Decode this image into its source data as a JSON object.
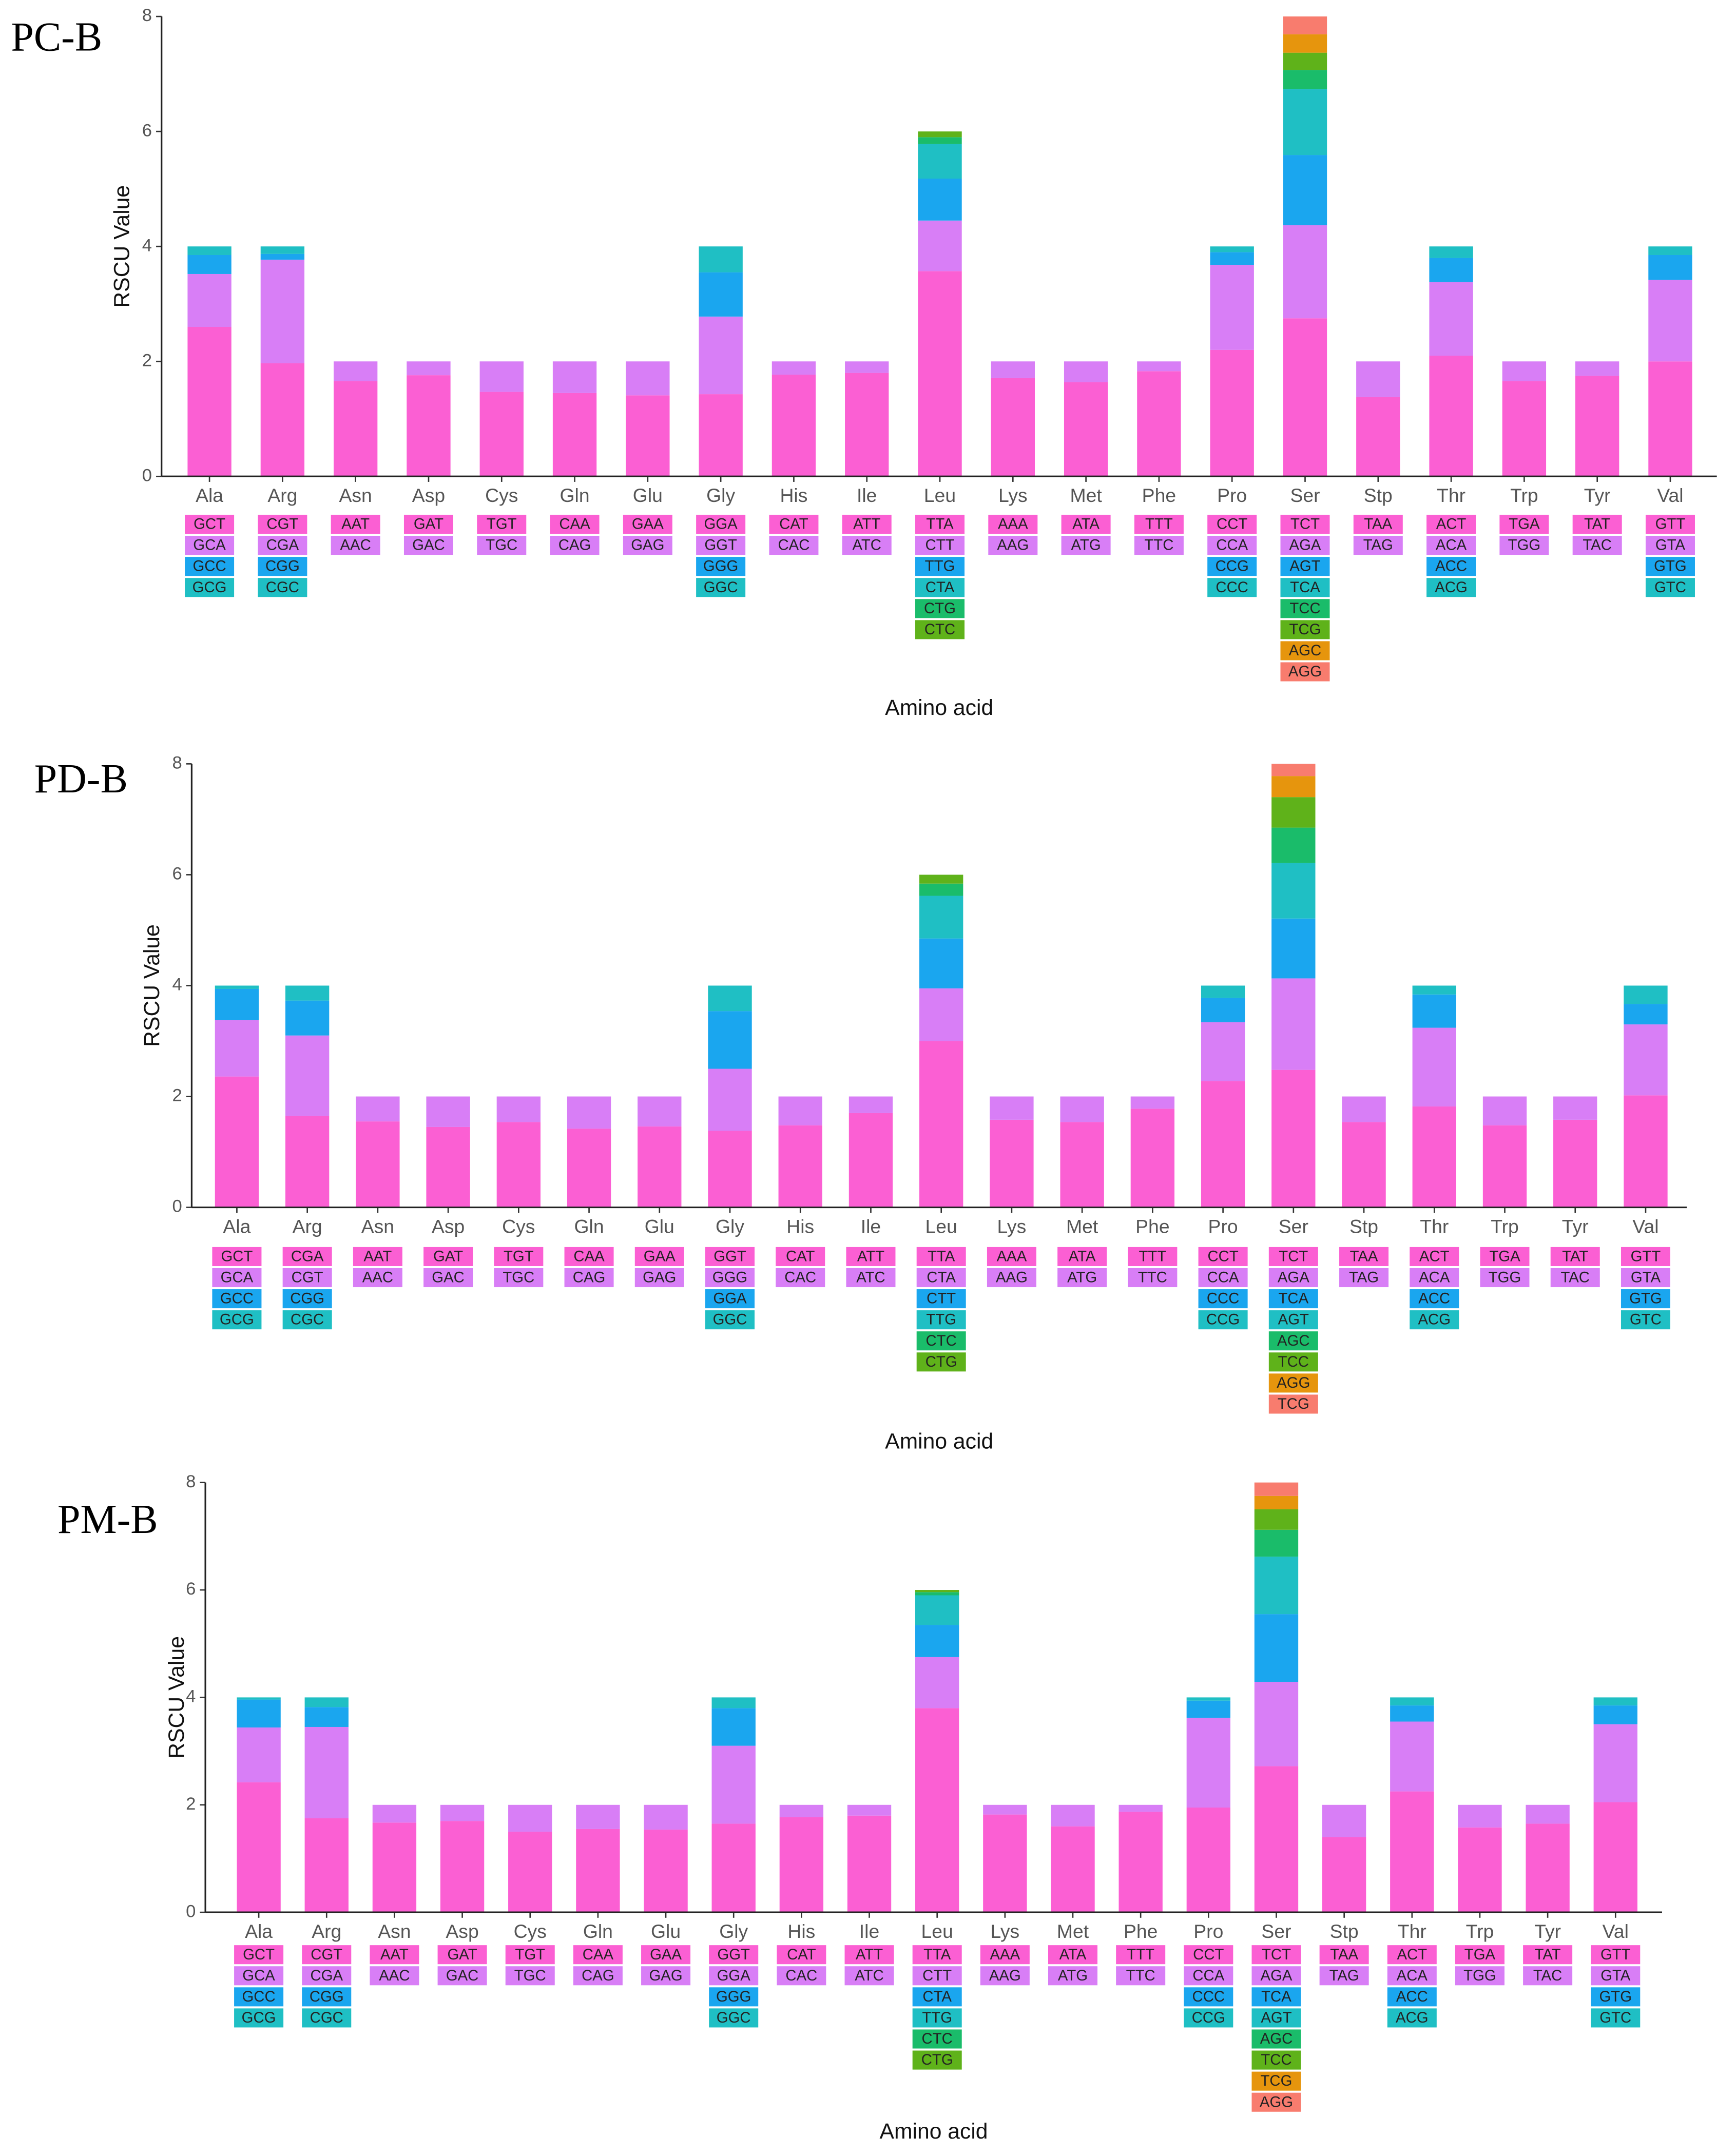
{
  "chart_data": [
    {
      "type": "stacked_bar",
      "title": "PC-B",
      "xlabel": "Amino acid",
      "ylabel": "RSCU Value",
      "ylim": [
        0,
        8
      ],
      "yticks": [
        0,
        2,
        4,
        6,
        8
      ],
      "colors": [
        "#fb5fd3",
        "#d87ef6",
        "#1aa6ef",
        "#1fbfc4",
        "#1abc6a",
        "#5fb21a",
        "#e6950d",
        "#f87c6e"
      ],
      "categories": [
        "Ala",
        "Arg",
        "Asn",
        "Asp",
        "Cys",
        "Gln",
        "Glu",
        "Gly",
        "His",
        "Ile",
        "Leu",
        "Lys",
        "Met",
        "Phe",
        "Pro",
        "Ser",
        "Stp",
        "Thr",
        "Trp",
        "Tyr",
        "Val"
      ],
      "stacks": [
        [
          [
            "GCT",
            2.6
          ],
          [
            "GCA",
            0.92
          ],
          [
            "GCC",
            0.33
          ],
          [
            "GCG",
            0.15
          ]
        ],
        [
          [
            "CGT",
            1.97
          ],
          [
            "CGA",
            1.8
          ],
          [
            "CGG",
            0.1
          ],
          [
            "CGC",
            0.13
          ]
        ],
        [
          [
            "AAT",
            1.66
          ],
          [
            "AAC",
            0.34
          ]
        ],
        [
          [
            "GAT",
            1.76
          ],
          [
            "GAC",
            0.24
          ]
        ],
        [
          [
            "TGT",
            1.47
          ],
          [
            "TGC",
            0.53
          ]
        ],
        [
          [
            "CAA",
            1.45
          ],
          [
            "CAG",
            0.55
          ]
        ],
        [
          [
            "GAA",
            1.41
          ],
          [
            "GAG",
            0.59
          ]
        ],
        [
          [
            "GGA",
            1.43
          ],
          [
            "GGT",
            1.35
          ],
          [
            "GGG",
            0.77
          ],
          [
            "GGC",
            0.45
          ]
        ],
        [
          [
            "CAT",
            1.77
          ],
          [
            "CAC",
            0.23
          ]
        ],
        [
          [
            "ATT",
            1.8
          ],
          [
            "ATC",
            0.2
          ]
        ],
        [
          [
            "TTA",
            3.57
          ],
          [
            "CTT",
            0.88
          ],
          [
            "TTG",
            0.73
          ],
          [
            "CTA",
            0.6
          ],
          [
            "CTG",
            0.12
          ],
          [
            "CTC",
            0.1
          ]
        ],
        [
          [
            "AAA",
            1.71
          ],
          [
            "AAG",
            0.29
          ]
        ],
        [
          [
            "ATA",
            1.64
          ],
          [
            "ATG",
            0.36
          ]
        ],
        [
          [
            "TTT",
            1.83
          ],
          [
            "TTC",
            0.17
          ]
        ],
        [
          [
            "CCT",
            2.2
          ],
          [
            "CCA",
            1.48
          ],
          [
            "CCG",
            0.22
          ],
          [
            "CCC",
            0.1
          ]
        ],
        [
          [
            "TCT",
            2.75
          ],
          [
            "AGA",
            1.62
          ],
          [
            "AGT",
            1.22
          ],
          [
            "TCA",
            1.15
          ],
          [
            "TCC",
            0.33
          ],
          [
            "TCG",
            0.3
          ],
          [
            "AGC",
            0.32
          ],
          [
            "AGG",
            0.31
          ]
        ],
        [
          [
            "TAA",
            1.38
          ],
          [
            "TAG",
            0.62
          ]
        ],
        [
          [
            "ACT",
            2.1
          ],
          [
            "ACA",
            1.28
          ],
          [
            "ACC",
            0.42
          ],
          [
            "ACG",
            0.2
          ]
        ],
        [
          [
            "TGA",
            1.66
          ],
          [
            "TGG",
            0.34
          ]
        ],
        [
          [
            "TAT",
            1.75
          ],
          [
            "TAC",
            0.25
          ]
        ],
        [
          [
            "GTT",
            2.0
          ],
          [
            "GTA",
            1.42
          ],
          [
            "GTG",
            0.43
          ],
          [
            "GTC",
            0.15
          ]
        ]
      ]
    },
    {
      "type": "stacked_bar",
      "title": "PD-B",
      "xlabel": "Amino acid",
      "ylabel": "RSCU Value",
      "ylim": [
        0,
        8
      ],
      "yticks": [
        0,
        2,
        4,
        6,
        8
      ],
      "colors": [
        "#fb5fd3",
        "#d87ef6",
        "#1aa6ef",
        "#1fbfc4",
        "#1abc6a",
        "#5fb21a",
        "#e6950d",
        "#f87c6e"
      ],
      "categories": [
        "Ala",
        "Arg",
        "Asn",
        "Asp",
        "Cys",
        "Gln",
        "Glu",
        "Gly",
        "His",
        "Ile",
        "Leu",
        "Lys",
        "Met",
        "Phe",
        "Pro",
        "Ser",
        "Stp",
        "Thr",
        "Trp",
        "Tyr",
        "Val"
      ],
      "stacks": [
        [
          [
            "GCT",
            2.36
          ],
          [
            "GCA",
            1.02
          ],
          [
            "GCC",
            0.56
          ],
          [
            "GCG",
            0.06
          ]
        ],
        [
          [
            "CGA",
            1.65
          ],
          [
            "CGT",
            1.45
          ],
          [
            "CGG",
            0.63
          ],
          [
            "CGC",
            0.27
          ]
        ],
        [
          [
            "AAT",
            1.55
          ],
          [
            "AAC",
            0.45
          ]
        ],
        [
          [
            "GAT",
            1.45
          ],
          [
            "GAC",
            0.55
          ]
        ],
        [
          [
            "TGT",
            1.54
          ],
          [
            "TGC",
            0.46
          ]
        ],
        [
          [
            "CAA",
            1.42
          ],
          [
            "CAG",
            0.58
          ]
        ],
        [
          [
            "GAA",
            1.46
          ],
          [
            "GAG",
            0.54
          ]
        ],
        [
          [
            "GGT",
            1.38
          ],
          [
            "GGG",
            1.12
          ],
          [
            "GGA",
            1.04
          ],
          [
            "GGC",
            0.46
          ]
        ],
        [
          [
            "CAT",
            1.48
          ],
          [
            "CAC",
            0.52
          ]
        ],
        [
          [
            "ATT",
            1.7
          ],
          [
            "ATC",
            0.3
          ]
        ],
        [
          [
            "TTA",
            3.0
          ],
          [
            "CTA",
            0.95
          ],
          [
            "CTT",
            0.9
          ],
          [
            "TTG",
            0.77
          ],
          [
            "CTC",
            0.22
          ],
          [
            "CTG",
            0.16
          ]
        ],
        [
          [
            "AAA",
            1.58
          ],
          [
            "AAG",
            0.42
          ]
        ],
        [
          [
            "ATA",
            1.54
          ],
          [
            "ATG",
            0.46
          ]
        ],
        [
          [
            "TTT",
            1.78
          ],
          [
            "TTC",
            0.22
          ]
        ],
        [
          [
            "CCT",
            2.28
          ],
          [
            "CCA",
            1.06
          ],
          [
            "CCC",
            0.44
          ],
          [
            "CCG",
            0.22
          ]
        ],
        [
          [
            "TCT",
            2.48
          ],
          [
            "AGA",
            1.65
          ],
          [
            "TCA",
            1.08
          ],
          [
            "AGT",
            1.0
          ],
          [
            "AGC",
            0.64
          ],
          [
            "TCC",
            0.55
          ],
          [
            "AGG",
            0.38
          ],
          [
            "TCG",
            0.22
          ]
        ],
        [
          [
            "TAA",
            1.54
          ],
          [
            "TAG",
            0.46
          ]
        ],
        [
          [
            "ACT",
            1.82
          ],
          [
            "ACA",
            1.42
          ],
          [
            "ACC",
            0.6
          ],
          [
            "ACG",
            0.16
          ]
        ],
        [
          [
            "TGA",
            1.48
          ],
          [
            "TGG",
            0.52
          ]
        ],
        [
          [
            "TAT",
            1.58
          ],
          [
            "TAC",
            0.42
          ]
        ],
        [
          [
            "GTT",
            2.02
          ],
          [
            "GTA",
            1.28
          ],
          [
            "GTG",
            0.37
          ],
          [
            "GTC",
            0.33
          ]
        ]
      ]
    },
    {
      "type": "stacked_bar",
      "title": "PM-B",
      "xlabel": "Amino acid",
      "ylabel": "RSCU Value",
      "ylim": [
        0,
        8
      ],
      "yticks": [
        0,
        2,
        4,
        6,
        8
      ],
      "colors": [
        "#fb5fd3",
        "#d87ef6",
        "#1aa6ef",
        "#1fbfc4",
        "#1abc6a",
        "#5fb21a",
        "#e6950d",
        "#f87c6e"
      ],
      "categories": [
        "Ala",
        "Arg",
        "Asn",
        "Asp",
        "Cys",
        "Gln",
        "Glu",
        "Gly",
        "His",
        "Ile",
        "Leu",
        "Lys",
        "Met",
        "Phe",
        "Pro",
        "Ser",
        "Stp",
        "Thr",
        "Trp",
        "Tyr",
        "Val"
      ],
      "stacks": [
        [
          [
            "GCT",
            2.42
          ],
          [
            "GCA",
            1.02
          ],
          [
            "GCC",
            0.52
          ],
          [
            "GCG",
            0.04
          ]
        ],
        [
          [
            "CGT",
            1.75
          ],
          [
            "CGA",
            1.7
          ],
          [
            "CGG",
            0.37
          ],
          [
            "CGC",
            0.18
          ]
        ],
        [
          [
            "AAT",
            1.67
          ],
          [
            "AAC",
            0.33
          ]
        ],
        [
          [
            "GAT",
            1.7
          ],
          [
            "GAC",
            0.3
          ]
        ],
        [
          [
            "TGT",
            1.5
          ],
          [
            "TGC",
            0.5
          ]
        ],
        [
          [
            "CAA",
            1.55
          ],
          [
            "CAG",
            0.45
          ]
        ],
        [
          [
            "GAA",
            1.54
          ],
          [
            "GAG",
            0.46
          ]
        ],
        [
          [
            "GGT",
            1.65
          ],
          [
            "GGA",
            1.45
          ],
          [
            "GGG",
            0.7
          ],
          [
            "GGC",
            0.2
          ]
        ],
        [
          [
            "CAT",
            1.77
          ],
          [
            "CAC",
            0.23
          ]
        ],
        [
          [
            "ATT",
            1.8
          ],
          [
            "ATC",
            0.2
          ]
        ],
        [
          [
            "TTA",
            3.8
          ],
          [
            "CTT",
            0.95
          ],
          [
            "CTA",
            0.6
          ],
          [
            "TTG",
            0.55
          ],
          [
            "CTC",
            0.06
          ],
          [
            "CTG",
            0.04
          ]
        ],
        [
          [
            "AAA",
            1.82
          ],
          [
            "AAG",
            0.18
          ]
        ],
        [
          [
            "ATA",
            1.6
          ],
          [
            "ATG",
            0.4
          ]
        ],
        [
          [
            "TTT",
            1.87
          ],
          [
            "TTC",
            0.13
          ]
        ],
        [
          [
            "CCT",
            1.95
          ],
          [
            "CCA",
            1.67
          ],
          [
            "CCC",
            0.32
          ],
          [
            "CCG",
            0.06
          ]
        ],
        [
          [
            "TCT",
            2.72
          ],
          [
            "AGA",
            1.57
          ],
          [
            "TCA",
            1.26
          ],
          [
            "AGT",
            1.07
          ],
          [
            "AGC",
            0.5
          ],
          [
            "TCC",
            0.38
          ],
          [
            "TCG",
            0.25
          ],
          [
            "AGG",
            0.25
          ]
        ],
        [
          [
            "TAA",
            1.4
          ],
          [
            "TAG",
            0.6
          ]
        ],
        [
          [
            "ACT",
            2.25
          ],
          [
            "ACA",
            1.3
          ],
          [
            "ACC",
            0.3
          ],
          [
            "ACG",
            0.15
          ]
        ],
        [
          [
            "TGA",
            1.58
          ],
          [
            "TGG",
            0.42
          ]
        ],
        [
          [
            "TAT",
            1.65
          ],
          [
            "TAC",
            0.35
          ]
        ],
        [
          [
            "GTT",
            2.05
          ],
          [
            "GTA",
            1.45
          ],
          [
            "GTG",
            0.35
          ],
          [
            "GTC",
            0.15
          ]
        ]
      ]
    }
  ]
}
